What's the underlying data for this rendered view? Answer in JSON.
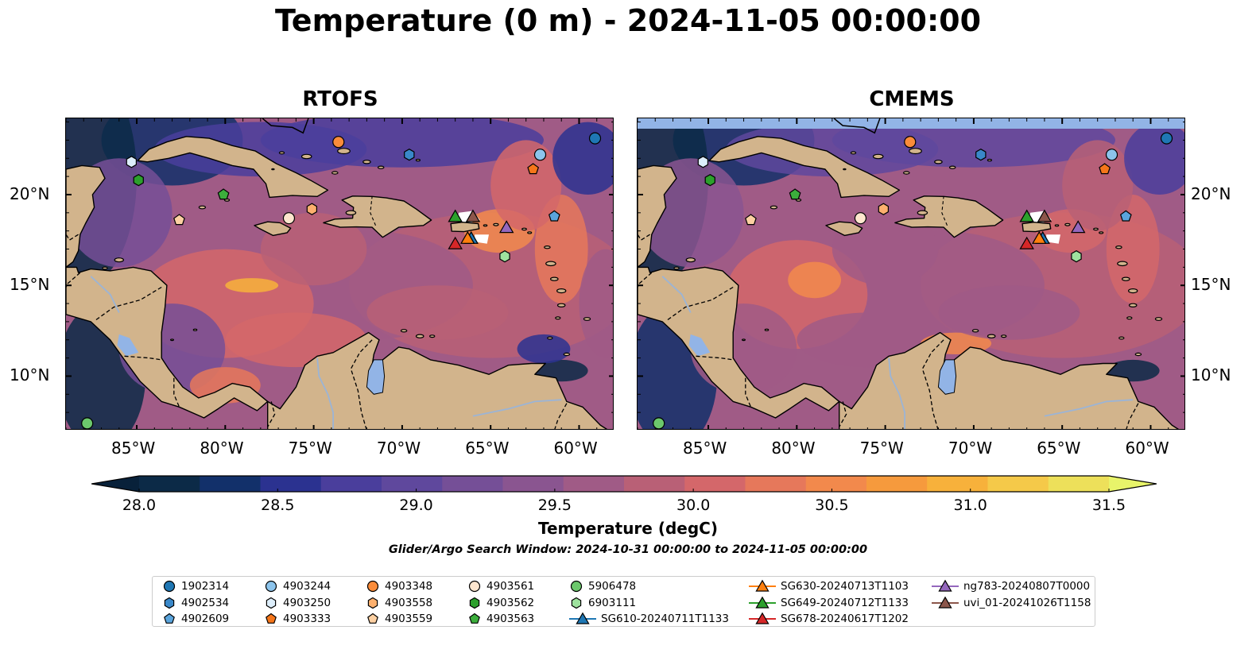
{
  "figure": {
    "title": "Temperature (0 m) - 2024-11-05 00:00:00",
    "search_window": "Glider/Argo Search Window: 2024-10-31 00:00:00 to 2024-11-05 00:00:00"
  },
  "panels": [
    {
      "title": "RTOFS"
    },
    {
      "title": "CMEMS"
    }
  ],
  "map_extent": {
    "lon": [
      -89,
      -58
    ],
    "lat": [
      7,
      24.2
    ]
  },
  "axis_ticks": {
    "lon": [
      {
        "value": -85,
        "label": "85°W"
      },
      {
        "value": -80,
        "label": "80°W"
      },
      {
        "value": -75,
        "label": "75°W"
      },
      {
        "value": -70,
        "label": "70°W"
      },
      {
        "value": -65,
        "label": "65°W"
      },
      {
        "value": -60,
        "label": "60°W"
      }
    ],
    "lat": [
      {
        "value": 20,
        "label": "20°N"
      },
      {
        "value": 15,
        "label": "15°N"
      },
      {
        "value": 10,
        "label": "10°N"
      }
    ]
  },
  "colorbar": {
    "title": "Temperature (degC)",
    "min": 28.0,
    "max": 31.5,
    "extend": "both",
    "ticks": [
      "28.0",
      "28.5",
      "29.0",
      "29.5",
      "30.0",
      "30.5",
      "31.0",
      "31.5"
    ],
    "colors": [
      "#0c2a47",
      "#12306a",
      "#2b3290",
      "#4a3e9c",
      "#5f489d",
      "#754f97",
      "#8a5590",
      "#a05b86",
      "#b96076",
      "#d4676a",
      "#e6785b",
      "#f2894c",
      "#f69a3d",
      "#f7b13b",
      "#f5c949",
      "#ede05a"
    ],
    "under_color": "#08213a",
    "over_color": "#e8f46a"
  },
  "colors": {
    "land": "#d2b48c",
    "lakes": "#92b4e6",
    "rivers": "#9bb4d6",
    "ocean_base": "#8a5590",
    "nodata": "#ffffff"
  },
  "platforms": [
    {
      "id": "1902314",
      "marker": "circle",
      "color": "#1f77b4",
      "lon": -59.1,
      "lat": 23.1
    },
    {
      "id": "4902534",
      "marker": "hexagon",
      "color": "#3a88c9",
      "lon": -69.6,
      "lat": 22.2
    },
    {
      "id": "4902609",
      "marker": "pentagon",
      "color": "#5aa4dc",
      "lon": -61.4,
      "lat": 18.8
    },
    {
      "id": "4903244",
      "marker": "circle",
      "color": "#8cc4ec",
      "lon": -62.2,
      "lat": 22.2
    },
    {
      "id": "4903250",
      "marker": "hexagon",
      "color": "#ddeefb",
      "lon": -85.3,
      "lat": 21.8
    },
    {
      "id": "4903333",
      "marker": "pentagon",
      "color": "#f5761a",
      "lon": -62.6,
      "lat": 21.4
    },
    {
      "id": "4903348",
      "marker": "circle",
      "color": "#fa8c3a",
      "lon": -73.6,
      "lat": 22.9
    },
    {
      "id": "4903558",
      "marker": "hexagon",
      "color": "#fdb06e",
      "lon": -75.1,
      "lat": 19.2
    },
    {
      "id": "4903559",
      "marker": "pentagon",
      "color": "#fdd0a2",
      "lon": -82.6,
      "lat": 18.6
    },
    {
      "id": "4903561",
      "marker": "circle",
      "color": "#fee6ce",
      "lon": -76.4,
      "lat": 18.7
    },
    {
      "id": "4903562",
      "marker": "hexagon",
      "color": "#2ca02c",
      "lon": -84.9,
      "lat": 20.8
    },
    {
      "id": "4903563",
      "marker": "pentagon",
      "color": "#3cae3c",
      "lon": -80.1,
      "lat": 20.0
    },
    {
      "id": "5906478",
      "marker": "circle",
      "color": "#6cc86c",
      "lon": -87.8,
      "lat": 7.4
    },
    {
      "id": "6903111",
      "marker": "hexagon",
      "color": "#9ee29e",
      "lon": -64.2,
      "lat": 16.6
    },
    {
      "id": "SG610-20240711T1133",
      "marker": "triangle",
      "color": "#1f77b4",
      "lon": -66.1,
      "lat": 17.6
    },
    {
      "id": "SG630-20240713T1103",
      "marker": "triangle",
      "color": "#ff7f0e",
      "lon": -66.3,
      "lat": 17.6
    },
    {
      "id": "SG649-20240712T1133",
      "marker": "triangle",
      "color": "#2ca02c",
      "lon": -67.0,
      "lat": 18.8
    },
    {
      "id": "SG678-20240617T1202",
      "marker": "triangle",
      "color": "#d62728",
      "lon": -67.0,
      "lat": 17.3
    },
    {
      "id": "ng783-20240807T0000",
      "marker": "triangle",
      "color": "#9467bd",
      "lon": -64.1,
      "lat": 18.2
    },
    {
      "id": "uvi_01-20241026T1158",
      "marker": "triangle",
      "color": "#8c564b",
      "lon": -66.0,
      "lat": 18.8
    }
  ]
}
